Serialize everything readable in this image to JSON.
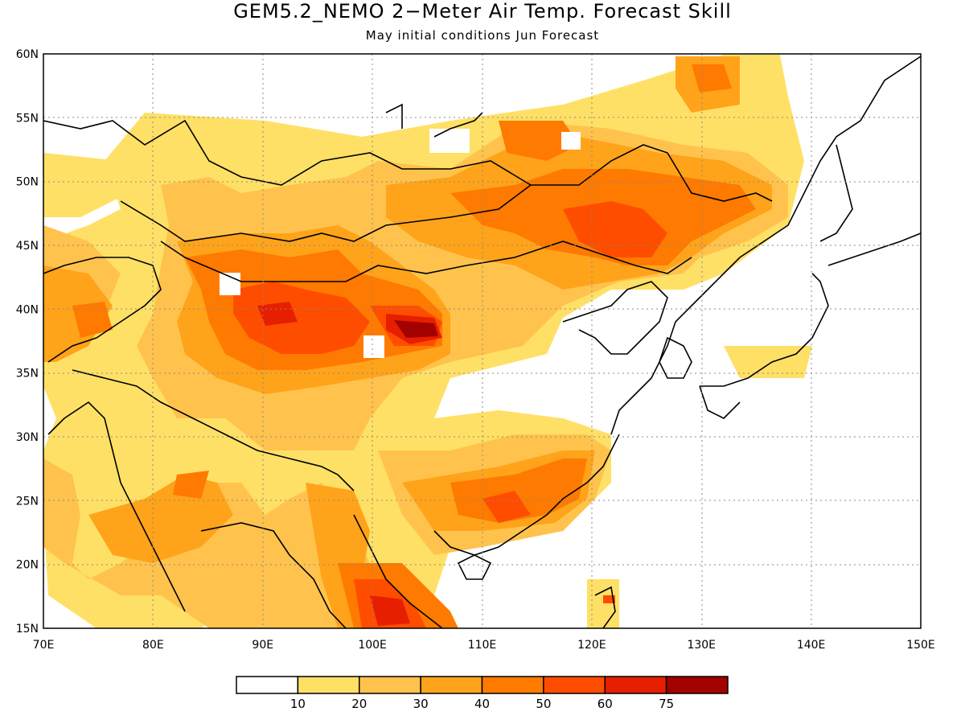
{
  "title": "GEM5.2_NEMO 2−Meter Air Temp. Forecast Skill",
  "subtitle": "May initial conditions  Jun Forecast",
  "map": {
    "lon_range": [
      70,
      150
    ],
    "lat_range": [
      15,
      60
    ],
    "lon_ticks": [
      "70E",
      "80E",
      "90E",
      "100E",
      "110E",
      "120E",
      "130E",
      "140E",
      "150E"
    ],
    "lat_ticks": [
      "60N",
      "55N",
      "50N",
      "45N",
      "40N",
      "35N",
      "30N",
      "25N",
      "20N",
      "15N"
    ],
    "grid": "dotted"
  },
  "colorbar": {
    "levels": [
      "10",
      "20",
      "30",
      "40",
      "50",
      "60",
      "75"
    ],
    "colors": [
      "#ffffff",
      "#ffe066",
      "#ffc34d",
      "#ffa31a",
      "#ff7a00",
      "#ff4d00",
      "#e61f00",
      "#a30000"
    ]
  }
}
